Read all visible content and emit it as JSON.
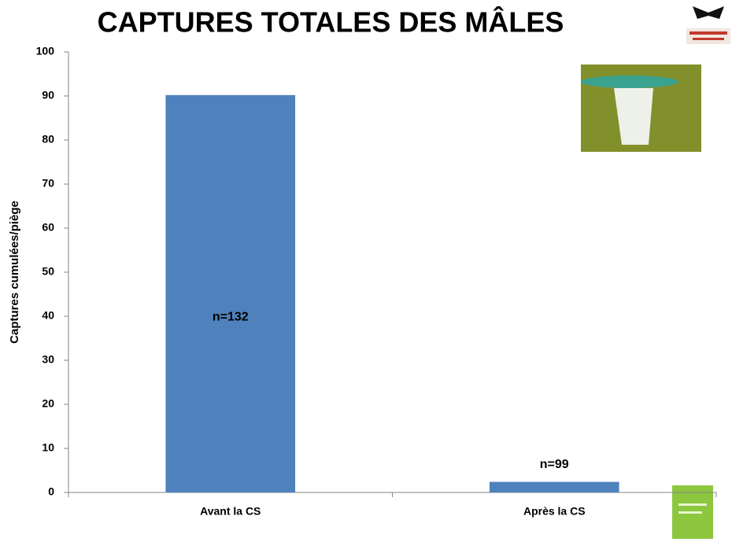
{
  "chart_data": {
    "type": "bar",
    "title": "CAPTURES TOTALES DES MÂLES",
    "y_label": "Captures cumulées/piège",
    "categories": [
      "Avant la CS",
      "Après la CS"
    ],
    "values": [
      90.2,
      2.4
    ],
    "annotations": [
      "n=132",
      "n=99"
    ],
    "color": "#4f81bd",
    "ylim": [
      0,
      100
    ],
    "yticks": [
      0,
      10,
      20,
      30,
      40,
      50,
      60,
      70,
      80,
      90,
      100
    ],
    "grid": false
  }
}
